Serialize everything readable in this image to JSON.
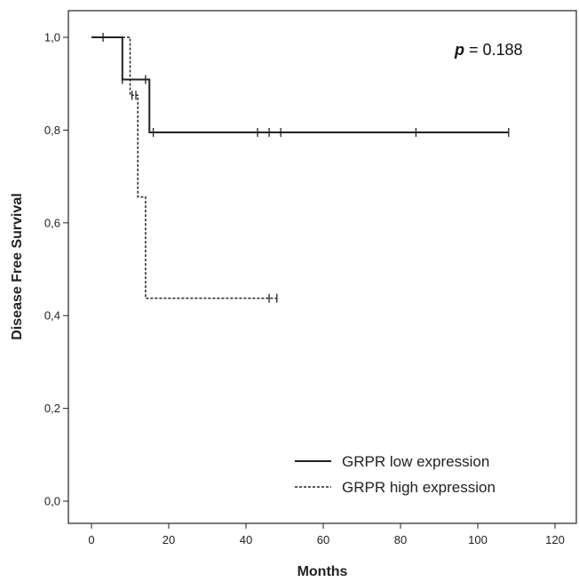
{
  "chart_data": {
    "type": "line",
    "subtype": "kaplan-meier step",
    "title": "",
    "xlabel": "Months",
    "ylabel": "Disease Free Survival",
    "xlim": [
      -5,
      125
    ],
    "ylim": [
      -0.05,
      1.05
    ],
    "x_ticks": [
      0,
      20,
      40,
      60,
      80,
      100,
      120
    ],
    "x_tick_labels": [
      "0",
      "20",
      "40",
      "60",
      "80",
      "100",
      "120"
    ],
    "y_ticks": [
      0.0,
      0.2,
      0.4,
      0.6,
      0.8,
      1.0
    ],
    "y_tick_labels": [
      "0,0",
      "0,2",
      "0,4",
      "0,6",
      "0,8",
      "1,0"
    ],
    "grid": false,
    "legend_position": "bottom-right",
    "annotation": {
      "italic": "p",
      "rest": " = 0.188"
    },
    "series": [
      {
        "name": "GRPR low expression",
        "line_style": "solid",
        "steps": [
          {
            "x": 0,
            "y": 1.0
          },
          {
            "x": 8,
            "y": 0.909
          },
          {
            "x": 15,
            "y": 0.795
          }
        ],
        "end_x": 108,
        "censored": [
          {
            "x": 3,
            "y": 1.0
          },
          {
            "x": 8,
            "y": 0.909
          },
          {
            "x": 14,
            "y": 0.909
          },
          {
            "x": 16,
            "y": 0.795
          },
          {
            "x": 43,
            "y": 0.795
          },
          {
            "x": 46,
            "y": 0.795
          },
          {
            "x": 49,
            "y": 0.795
          },
          {
            "x": 84,
            "y": 0.795
          },
          {
            "x": 108,
            "y": 0.795
          }
        ]
      },
      {
        "name": "GRPR high expression",
        "line_style": "dashed",
        "steps": [
          {
            "x": 0,
            "y": 1.0
          },
          {
            "x": 10,
            "y": 0.875
          },
          {
            "x": 12,
            "y": 0.656
          },
          {
            "x": 14,
            "y": 0.4375
          }
        ],
        "end_x": 48,
        "censored": [
          {
            "x": 10.5,
            "y": 0.875
          },
          {
            "x": 11.5,
            "y": 0.875
          },
          {
            "x": 46,
            "y": 0.4375
          },
          {
            "x": 48,
            "y": 0.4375
          }
        ]
      }
    ]
  }
}
